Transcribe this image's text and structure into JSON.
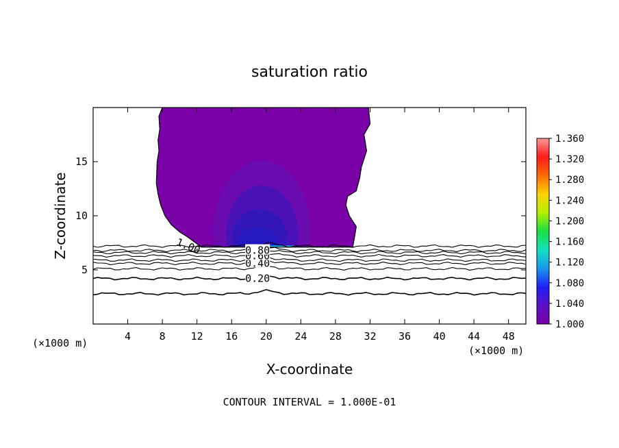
{
  "chart_data": {
    "type": "heatmap",
    "title": "saturation ratio",
    "xlabel": "X-coordinate",
    "ylabel": "Z-coordinate",
    "x_unit": "(×1000 m)",
    "y_unit": "(×1000 m)",
    "xlim": [
      0,
      50
    ],
    "ylim": [
      0,
      20
    ],
    "x_ticks": [
      4,
      8,
      12,
      16,
      20,
      24,
      28,
      32,
      36,
      40,
      44,
      48
    ],
    "y_ticks": [
      5,
      10,
      15
    ],
    "footer": "CONTOUR INTERVAL = 1.000E-01",
    "colorbar": {
      "min": 1.0,
      "max": 1.36,
      "labels": [
        "1.360",
        "1.320",
        "1.280",
        "1.240",
        "1.200",
        "1.160",
        "1.120",
        "1.080",
        "1.040",
        "1.000"
      ]
    },
    "contour_lines": [
      {
        "label": "0.20",
        "z": 4.2,
        "label_x": 19
      },
      {
        "label": "0.40",
        "z": 5.6,
        "label_x": 19
      },
      {
        "label": "0.60",
        "z": 6.3,
        "label_x": 19
      },
      {
        "label": "0.80",
        "z": 6.8,
        "label_x": 19
      },
      {
        "label": "1.00",
        "z": 7.2,
        "label_x": 11
      }
    ],
    "extra_contour_levels_z": [
      2.8,
      5.1,
      5.9,
      6.6
    ],
    "shaded_region": {
      "outline_x": [
        8,
        7.6,
        7.7,
        7.5,
        7.6,
        7.4,
        7.3,
        7.5,
        7.8,
        8.3,
        9.0,
        10.0,
        11.0,
        12.5,
        14,
        16,
        18,
        20,
        22,
        24,
        26,
        28,
        30,
        30.2,
        30.4,
        29.6,
        29.2,
        29.4,
        30.4,
        30.8,
        31.0,
        31.6,
        31.3,
        32.0,
        31.8
      ],
      "outline_z": [
        20,
        19.2,
        18.0,
        17.0,
        16.0,
        15.0,
        13.0,
        12.0,
        11.0,
        10.0,
        9.2,
        8.5,
        8.0,
        7.1,
        7.1,
        7.1,
        7.1,
        7.1,
        7.1,
        7.1,
        7.1,
        7.1,
        7.1,
        8.0,
        9.0,
        10.0,
        11.0,
        11.8,
        12.3,
        13.5,
        14.5,
        16.0,
        17.5,
        18.5,
        20
      ],
      "levels": [
        {
          "value": 1.01,
          "cx": 19.5,
          "cz": 8.6,
          "rx": 5.6,
          "rz": 6.5
        },
        {
          "value": 1.02,
          "cx": 19.5,
          "cz": 8.3,
          "rx": 4.2,
          "rz": 4.5
        },
        {
          "value": 1.03,
          "cx": 19.2,
          "cz": 7.9,
          "rx": 3.2,
          "rz": 2.7
        },
        {
          "value": 1.04,
          "cx": 19.0,
          "cz": 7.6,
          "rx": 2.2,
          "rz": 1.4
        }
      ],
      "peak": {
        "value": 1.1,
        "x0": 18.5,
        "x1": 23.2,
        "z": 7.15
      }
    },
    "colors": {
      "background": "#ffffff",
      "base_fill": "#7a00a8",
      "level_fills": [
        "#6a0cb0",
        "#4a12b4",
        "#3216b8",
        "#2618c0"
      ],
      "peak": "#16c8f0",
      "colorbar_stops": [
        "#ff9a9a",
        "#ff1a1a",
        "#ff6a00",
        "#ffd200",
        "#b4f000",
        "#18e040",
        "#16e0c0",
        "#1698f0",
        "#1f1ff5",
        "#5a10c8",
        "#7a00a8"
      ]
    }
  }
}
